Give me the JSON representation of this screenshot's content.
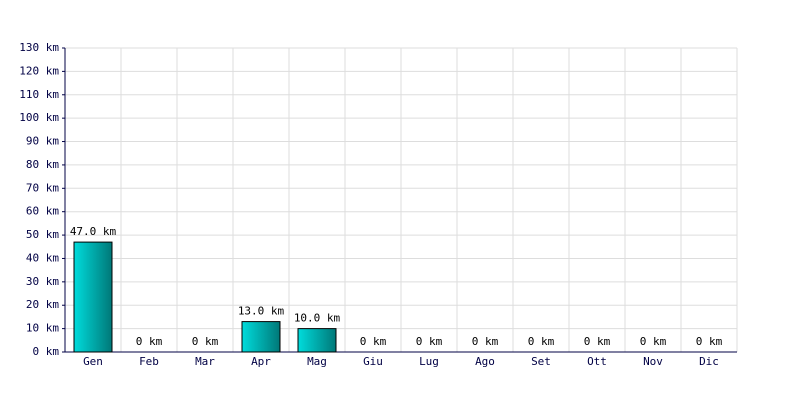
{
  "chart_data": {
    "type": "bar",
    "categories": [
      "Gen",
      "Feb",
      "Mar",
      "Apr",
      "Mag",
      "Giu",
      "Lug",
      "Ago",
      "Set",
      "Ott",
      "Nov",
      "Dic"
    ],
    "values": [
      47,
      0,
      0,
      13,
      10,
      0,
      0,
      0,
      0,
      0,
      0,
      0
    ],
    "value_labels": [
      "47.0 km",
      "0 km",
      "0 km",
      "13.0 km",
      "10.0 km",
      "0 km",
      "0 km",
      "0 km",
      "0 km",
      "0 km",
      "0 km",
      "0 km"
    ],
    "color": "#00dcdc",
    "ylim": [
      0,
      130
    ],
    "yticks": [
      {
        "value": 0,
        "label": "0 km"
      },
      {
        "value": 10,
        "label": "10 km"
      },
      {
        "value": 20,
        "label": "20 km"
      },
      {
        "value": 30,
        "label": "30 km"
      },
      {
        "value": 40,
        "label": "40 km"
      },
      {
        "value": 50,
        "label": "50 km"
      },
      {
        "value": 60,
        "label": "60 km"
      },
      {
        "value": 70,
        "label": "70 km"
      },
      {
        "value": 80,
        "label": "80 km"
      },
      {
        "value": 90,
        "label": "90 km"
      },
      {
        "value": 100,
        "label": "100 km"
      },
      {
        "value": 110,
        "label": "110 km"
      },
      {
        "value": 120,
        "label": "120 km"
      },
      {
        "value": 130,
        "label": "130 km"
      }
    ],
    "grid": true
  }
}
